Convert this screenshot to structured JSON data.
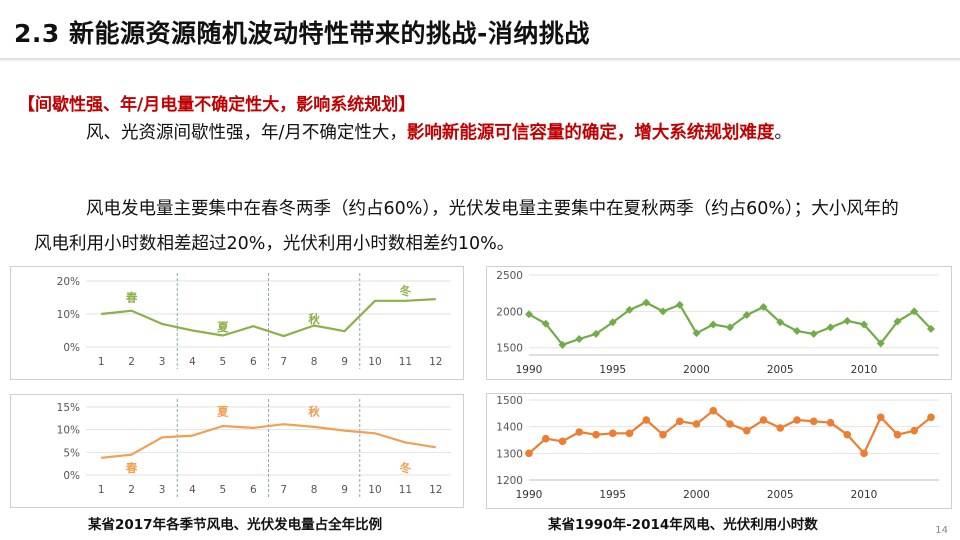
{
  "slide": {
    "title": "2.3 新能源资源随机波动特性带来的挑战-消纳挑战",
    "heading": "【间歇性强、年/月电量不确定性大，影响系统规划】",
    "para1_a": "风、光资源间歇性强，年/月不确定性大，",
    "para1_b": "影响新能源可信容量的确定，增大系统规划难度",
    "para1_c": "。",
    "para2": "风电发电量主要集中在春冬两季（约占60%），光伏发电量主要集中在夏秋两季（约占60%）；大小风年的风电利用小时数相差超过20%，光伏利用小时数相差约10%。",
    "caption_left": "某省2017年各季节风电、光伏发电量占全年比例",
    "caption_right": "某省1990年-2014年风电、光伏利用小时数",
    "page_number": "14"
  },
  "chart_data": [
    {
      "type": "line",
      "x": [
        1,
        2,
        3,
        4,
        5,
        6,
        7,
        8,
        9,
        10,
        11,
        12
      ],
      "values": [
        10,
        11,
        7,
        5,
        3.5,
        6.3,
        3.3,
        6.5,
        4.8,
        14,
        14,
        14.5
      ],
      "ylim": [
        0,
        20
      ],
      "yticks": [
        "0%",
        "10%",
        "20%"
      ],
      "ytick_values": [
        0,
        10,
        20
      ],
      "xticks": [
        "1",
        "2",
        "3",
        "4",
        "5",
        "6",
        "7",
        "8",
        "9",
        "10",
        "11",
        "12"
      ],
      "season_dividers_after": [
        3,
        6,
        9
      ],
      "annotations": [
        {
          "text": "春",
          "x": 2,
          "y": 15
        },
        {
          "text": "夏",
          "x": 5,
          "y": 6
        },
        {
          "text": "秋",
          "x": 8,
          "y": 8.5
        },
        {
          "text": "冬",
          "x": 11,
          "y": 17
        }
      ],
      "color": "#8db04a"
    },
    {
      "type": "line",
      "x": [
        1,
        2,
        3,
        4,
        5,
        6,
        7,
        8,
        9,
        10,
        11,
        12
      ],
      "values": [
        3.8,
        4.5,
        8.3,
        8.7,
        10.8,
        10.4,
        11.2,
        10.6,
        9.8,
        9.2,
        7.2,
        6.1
      ],
      "ylim": [
        0,
        15
      ],
      "yticks": [
        "0%",
        "5%",
        "10%",
        "15%"
      ],
      "ytick_values": [
        0,
        5,
        10,
        15
      ],
      "xticks": [
        "1",
        "2",
        "3",
        "4",
        "5",
        "6",
        "7",
        "8",
        "9",
        "10",
        "11",
        "12"
      ],
      "season_dividers_after": [
        3,
        6,
        9
      ],
      "annotations": [
        {
          "text": "春",
          "x": 2,
          "y": 1.5
        },
        {
          "text": "夏",
          "x": 5,
          "y": 14
        },
        {
          "text": "秋",
          "x": 8,
          "y": 14
        },
        {
          "text": "冬",
          "x": 11,
          "y": 1.5
        }
      ],
      "color": "#f0a050"
    },
    {
      "type": "line",
      "x": [
        1990,
        1991,
        1992,
        1993,
        1994,
        1995,
        1996,
        1997,
        1998,
        1999,
        2000,
        2001,
        2002,
        2003,
        2004,
        2005,
        2006,
        2007,
        2008,
        2009,
        2010,
        2011,
        2012,
        2013,
        2014
      ],
      "values": [
        1960,
        1830,
        1540,
        1620,
        1690,
        1850,
        2020,
        2120,
        2000,
        2090,
        1700,
        1820,
        1780,
        1950,
        2060,
        1850,
        1730,
        1690,
        1780,
        1870,
        1820,
        1560,
        1860,
        2000,
        1760
      ],
      "ylim": [
        1400,
        2500
      ],
      "yticks": [
        "1500",
        "2000",
        "2500"
      ],
      "ytick_values": [
        1500,
        2000,
        2500
      ],
      "xticks": [
        "1990",
        "1995",
        "2000",
        "2005",
        "2010"
      ],
      "xtick_values": [
        1990,
        1995,
        2000,
        2005,
        2010
      ],
      "color": "#70ad47"
    },
    {
      "type": "line",
      "x": [
        1990,
        1991,
        1992,
        1993,
        1994,
        1995,
        1996,
        1997,
        1998,
        1999,
        2000,
        2001,
        2002,
        2003,
        2004,
        2005,
        2006,
        2007,
        2008,
        2009,
        2010,
        2011,
        2012,
        2013,
        2014
      ],
      "values": [
        1300,
        1355,
        1345,
        1380,
        1370,
        1375,
        1375,
        1425,
        1370,
        1420,
        1410,
        1460,
        1410,
        1385,
        1425,
        1395,
        1425,
        1420,
        1415,
        1370,
        1300,
        1435,
        1370,
        1385,
        1435
      ],
      "ylim": [
        1200,
        1500
      ],
      "yticks": [
        "1200",
        "1300",
        "1400",
        "1500"
      ],
      "ytick_values": [
        1200,
        1300,
        1400,
        1500
      ],
      "xticks": [
        "1990",
        "1995",
        "2000",
        "2005",
        "2010"
      ],
      "xtick_values": [
        1990,
        1995,
        2000,
        2005,
        2010
      ],
      "color": "#ed7d31"
    }
  ]
}
